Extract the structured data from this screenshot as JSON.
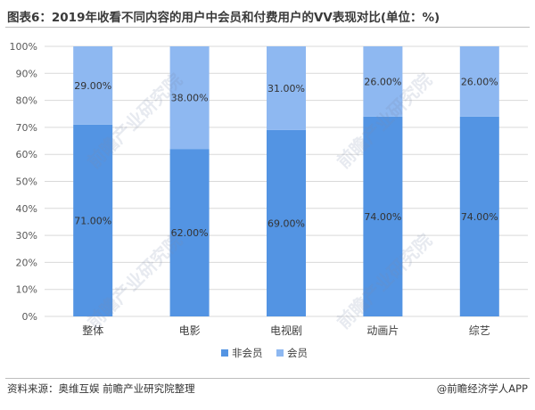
{
  "title": "图表6：2019年收看不同内容的用户中会员和付费用户的VV表现对比(单位：%)",
  "footer": {
    "source": "资料来源：奥维互娱 前瞻产业研究院整理",
    "credit": "@前瞻经济学人APP"
  },
  "watermark": "前瞻产业研究院",
  "colors": {
    "non_member": "#5394E3",
    "member": "#8EB8F1",
    "grid": "#d9d9d9",
    "axis_text": "#595959"
  },
  "chart_data": {
    "type": "bar",
    "stacked": true,
    "categories": [
      "整体",
      "电影",
      "电视剧",
      "动画片",
      "综艺"
    ],
    "series": [
      {
        "name": "非会员",
        "values": [
          71,
          62,
          69,
          74,
          74
        ],
        "labels": [
          "71.00%",
          "62.00%",
          "69.00%",
          "74.00%",
          "74.00%"
        ]
      },
      {
        "name": "会员",
        "values": [
          29,
          38,
          31,
          26,
          26
        ],
        "labels": [
          "29.00%",
          "38.00%",
          "31.00%",
          "26.00%",
          "26.00%"
        ]
      }
    ],
    "yticks": [
      "0%",
      "10%",
      "20%",
      "30%",
      "40%",
      "50%",
      "60%",
      "70%",
      "80%",
      "90%",
      "100%"
    ],
    "ylim": [
      0,
      100
    ],
    "grid": true,
    "legend": "bottom"
  }
}
